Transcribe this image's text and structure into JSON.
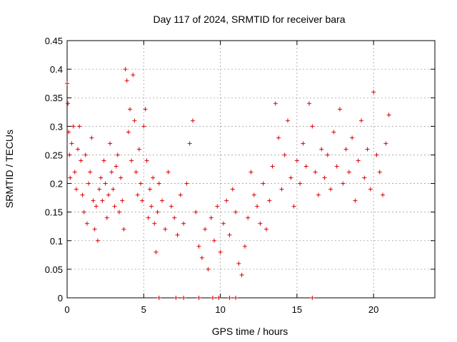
{
  "chart_data": {
    "type": "scatter",
    "title": "Day 117 of 2024, SRMTID for receiver bara",
    "xlabel": "GPS time / hours",
    "ylabel": "SRMTID / TECUs",
    "xlim": [
      0,
      24
    ],
    "ylim": [
      0,
      0.45
    ],
    "x_ticks": [
      0,
      5,
      10,
      15,
      20
    ],
    "y_ticks": [
      0,
      0.05,
      0.1,
      0.15,
      0.2,
      0.25,
      0.3,
      0.35,
      0.4,
      0.45
    ],
    "x_tick_labels": [
      "0",
      "5",
      "10",
      "15",
      "20"
    ],
    "y_tick_labels": [
      "0",
      "0.05",
      "0.1",
      "0.15",
      "0.2",
      "0.25",
      "0.3",
      "0.35",
      "0.4",
      "0.45"
    ],
    "grid": true,
    "marker": "+",
    "color": "#dd0000",
    "series": [
      {
        "name": "SRMTID",
        "points": [
          [
            0.0,
            0.375
          ],
          [
            0.05,
            0.34
          ],
          [
            0.1,
            0.29
          ],
          [
            0.15,
            0.25
          ],
          [
            0.2,
            0.21
          ],
          [
            0.3,
            0.27
          ],
          [
            0.4,
            0.3
          ],
          [
            0.5,
            0.22
          ],
          [
            0.6,
            0.19
          ],
          [
            0.7,
            0.26
          ],
          [
            0.8,
            0.3
          ],
          [
            0.9,
            0.24
          ],
          [
            1.0,
            0.18
          ],
          [
            1.1,
            0.15
          ],
          [
            1.2,
            0.25
          ],
          [
            1.3,
            0.13
          ],
          [
            1.4,
            0.2
          ],
          [
            1.5,
            0.22
          ],
          [
            1.6,
            0.28
          ],
          [
            1.7,
            0.17
          ],
          [
            1.8,
            0.12
          ],
          [
            1.9,
            0.16
          ],
          [
            2.0,
            0.1
          ],
          [
            2.1,
            0.19
          ],
          [
            2.2,
            0.21
          ],
          [
            2.3,
            0.17
          ],
          [
            2.4,
            0.24
          ],
          [
            2.5,
            0.2
          ],
          [
            2.6,
            0.14
          ],
          [
            2.7,
            0.18
          ],
          [
            2.8,
            0.27
          ],
          [
            2.9,
            0.22
          ],
          [
            3.0,
            0.19
          ],
          [
            3.1,
            0.16
          ],
          [
            3.2,
            0.23
          ],
          [
            3.3,
            0.25
          ],
          [
            3.4,
            0.15
          ],
          [
            3.5,
            0.21
          ],
          [
            3.6,
            0.17
          ],
          [
            3.7,
            0.12
          ],
          [
            3.8,
            0.4
          ],
          [
            3.9,
            0.38
          ],
          [
            4.0,
            0.29
          ],
          [
            4.1,
            0.33
          ],
          [
            4.2,
            0.24
          ],
          [
            4.3,
            0.39
          ],
          [
            4.4,
            0.31
          ],
          [
            4.5,
            0.22
          ],
          [
            4.6,
            0.18
          ],
          [
            4.7,
            0.26
          ],
          [
            4.8,
            0.2
          ],
          [
            4.9,
            0.17
          ],
          [
            5.0,
            0.3
          ],
          [
            5.1,
            0.33
          ],
          [
            5.2,
            0.24
          ],
          [
            5.3,
            0.14
          ],
          [
            5.4,
            0.19
          ],
          [
            5.5,
            0.16
          ],
          [
            5.6,
            0.21
          ],
          [
            5.7,
            0.13
          ],
          [
            5.8,
            0.08
          ],
          [
            5.9,
            0.15
          ],
          [
            6.0,
            0.2
          ],
          [
            6.2,
            0.17
          ],
          [
            6.4,
            0.12
          ],
          [
            6.6,
            0.22
          ],
          [
            6.8,
            0.16
          ],
          [
            7.0,
            0.14
          ],
          [
            7.2,
            0.11
          ],
          [
            7.4,
            0.18
          ],
          [
            7.6,
            0.13
          ],
          [
            7.8,
            0.2
          ],
          [
            8.0,
            0.27
          ],
          [
            8.2,
            0.31
          ],
          [
            8.4,
            0.15
          ],
          [
            8.6,
            0.09
          ],
          [
            8.8,
            0.07
          ],
          [
            9.0,
            0.12
          ],
          [
            9.2,
            0.05
          ],
          [
            9.4,
            0.14
          ],
          [
            9.6,
            0.1
          ],
          [
            9.8,
            0.16
          ],
          [
            10.0,
            0.08
          ],
          [
            10.2,
            0.13
          ],
          [
            10.4,
            0.17
          ],
          [
            10.6,
            0.11
          ],
          [
            10.8,
            0.19
          ],
          [
            11.0,
            0.15
          ],
          [
            11.2,
            0.06
          ],
          [
            11.4,
            0.04
          ],
          [
            11.6,
            0.09
          ],
          [
            11.8,
            0.14
          ],
          [
            12.0,
            0.22
          ],
          [
            12.2,
            0.18
          ],
          [
            12.4,
            0.16
          ],
          [
            12.6,
            0.13
          ],
          [
            12.8,
            0.2
          ],
          [
            13.0,
            0.12
          ],
          [
            13.2,
            0.17
          ],
          [
            13.4,
            0.23
          ],
          [
            13.6,
            0.34
          ],
          [
            13.8,
            0.28
          ],
          [
            14.0,
            0.19
          ],
          [
            14.2,
            0.25
          ],
          [
            14.4,
            0.31
          ],
          [
            14.6,
            0.21
          ],
          [
            14.8,
            0.16
          ],
          [
            15.0,
            0.24
          ],
          [
            15.2,
            0.2
          ],
          [
            15.4,
            0.27
          ],
          [
            15.6,
            0.23
          ],
          [
            15.8,
            0.34
          ],
          [
            16.0,
            0.3
          ],
          [
            16.2,
            0.22
          ],
          [
            16.4,
            0.18
          ],
          [
            16.6,
            0.26
          ],
          [
            16.8,
            0.21
          ],
          [
            17.0,
            0.25
          ],
          [
            17.2,
            0.19
          ],
          [
            17.4,
            0.29
          ],
          [
            17.6,
            0.23
          ],
          [
            17.8,
            0.33
          ],
          [
            18.0,
            0.2
          ],
          [
            18.2,
            0.26
          ],
          [
            18.4,
            0.22
          ],
          [
            18.6,
            0.28
          ],
          [
            18.8,
            0.17
          ],
          [
            19.0,
            0.24
          ],
          [
            19.2,
            0.31
          ],
          [
            19.4,
            0.21
          ],
          [
            19.6,
            0.26
          ],
          [
            19.8,
            0.19
          ],
          [
            20.0,
            0.36
          ],
          [
            20.2,
            0.25
          ],
          [
            20.4,
            0.22
          ],
          [
            20.6,
            0.18
          ],
          [
            20.8,
            0.27
          ],
          [
            21.0,
            0.32
          ],
          [
            6.0,
            0.0
          ],
          [
            7.1,
            0.0
          ],
          [
            7.6,
            0.0
          ],
          [
            8.6,
            0.0
          ],
          [
            9.5,
            0.0
          ],
          [
            9.9,
            0.0
          ],
          [
            10.6,
            0.0
          ],
          [
            11.0,
            0.0
          ],
          [
            16.0,
            0.0
          ]
        ]
      }
    ]
  }
}
